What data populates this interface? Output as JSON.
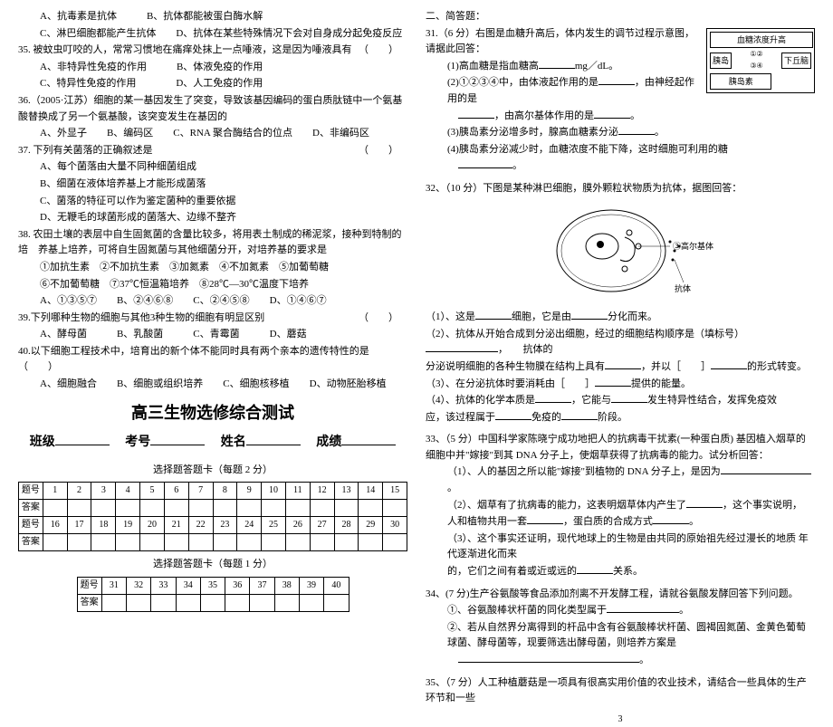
{
  "left": {
    "q34opts": {
      "a": "A、抗毒素是抗体",
      "b": "B、抗体都能被蛋白酶水解",
      "c": "C、淋巴细胞都能产生抗体",
      "d": "D、抗体在某些特殊情况下会对自身成分起免疫反应"
    },
    "q35": "35. 被蚊虫叮咬的人，常常习惯地在痛痒处抹上一点唾液，这是因为唾液具有",
    "q35opts": {
      "a": "A、非特异性免疫的作用",
      "b": "B、体液免疫的作用",
      "c": "C、特异性免疫的作用",
      "d": "D、人工免疫的作用"
    },
    "q36": "36.（2005·江苏）细胞的某一基因发生了突变，导致该基因编码的蛋白质肽链中一个氨基酸替换成了另一个氨基酸，该突变发生在基因的",
    "q36opts": {
      "a": "A、外显子",
      "b": "B、编码区",
      "c": "C、RNA 聚合酶结合的位点",
      "d": "D、非编码区"
    },
    "q37": "37. 下列有关菌落的正确叙述是",
    "q37opts": {
      "a": "A、每个菌落由大量不同种细菌组成",
      "b": "B、细菌在液体培养基上才能形成菌落",
      "c": "C、菌落的特征可以作为鉴定菌种的重要依据",
      "d": "D、无鞭毛的球菌形成的菌落大、边缘不整齐"
    },
    "q38": "38. 农田土壤的表层中自生固氮菌的含量比较多，将用表土制成的稀泥浆，接种到特制的培　养基上培养，可将自生固氮菌与其他细菌分开，对培养基的要求是",
    "q38opts1": "①加抗生素　②不加抗生素　③加氮素　④不加氮素　⑤加葡萄糖",
    "q38opts2": "⑥不加葡萄糖　⑦37℃恒温箱培养　⑧28℃—30℃温度下培养",
    "q38abcd": {
      "a": "A、①③⑤⑦",
      "b": "B、②④⑥⑧",
      "c": "C、②④⑤⑧",
      "d": "D、①④⑥⑦"
    },
    "q39": "39.下列哪种生物的细胞与其他3种生物的细胞有明显区别",
    "q39opts": {
      "a": "A、酵母菌",
      "b": "B、乳酸菌",
      "c": "C、青霉菌",
      "d": "D、蘑菇"
    },
    "q40": "40.以下细胞工程技术中，培育出的新个体不能同时具有两个亲本的遗传特性的是（",
    "q40opts": {
      "a": "A、细胞融合",
      "b": "B、细胞或组织培养",
      "c": "C、细胞核移植",
      "d": "D、动物胚胎移植"
    },
    "title": "高三生物选修综合测试",
    "form": {
      "class": "班级",
      "id": "考号",
      "name": "姓名",
      "score": "成绩"
    },
    "tbl2_title": "选择题答题卡（每题 2 分）",
    "tbl1_title": "选择题答题卡（每题 1 分）",
    "row_label_q": "题号",
    "row_label_a": "答案",
    "t2_row1": [
      "1",
      "2",
      "3",
      "4",
      "5",
      "6",
      "7",
      "8",
      "9",
      "10",
      "11",
      "12",
      "13",
      "14",
      "15"
    ],
    "t2_row2": [
      "16",
      "17",
      "18",
      "19",
      "20",
      "21",
      "22",
      "23",
      "24",
      "25",
      "26",
      "27",
      "28",
      "29",
      "30"
    ],
    "t1_row": [
      "31",
      "32",
      "33",
      "34",
      "35",
      "36",
      "37",
      "38",
      "39",
      "40"
    ]
  },
  "right": {
    "sec2": "二、简答题：",
    "q31": "31.（6 分）右图是血糖升高后，体内发生的调节过程示意图，请据此回答：",
    "q31_1": "(1)高血糖是指血糖高",
    "q31_1u": "mg／dL。",
    "q31_2": "(2)①②③④中，由体液起作用的是",
    "q31_2b": "，由神经起作用的是",
    "q31_2c": "，由高尔基体作用的是",
    "q31_3": "(3)胰岛素分泌增多时，腺高血糖素分泌",
    "q31_4": "(4)胰岛素分泌减少时，血糖浓度不能下降，这时细胞可利用的糖",
    "diag": {
      "top": "血糖浓度升高",
      "left": "胰岛",
      "right": "下丘脑",
      "bottom": "胰岛素",
      "nums": [
        "①",
        "②",
        "③",
        "④"
      ]
    },
    "q32": "32、（10 分）下图是某种淋巴细胞，膜外颗粒状物质为抗体，据图回答：",
    "cell_labels": {
      "gb": "③高尔基体",
      "ab": "抗体"
    },
    "q32_1": "（1）、这是",
    "q32_1b": "细胞，它是由",
    "q32_1c": "分化而来。",
    "q32_2": "（2）、抗体从开始合成到分泌出细胞，经过的细胞结构顺序是（填标号）",
    "q32_2b": "，　　抗体的",
    "q32_2c": "分泌说明细胞的各种生物膜在结构上具有",
    "q32_2d": "，并以［　　］",
    "q32_2e": "的形式转变。",
    "q32_3": "（3）、在分泌抗体时要消耗由［　　］",
    "q32_3b": "提供的能量。",
    "q32_4": "（4）、抗体的化学本质是",
    "q32_4b": "，它能与",
    "q32_4c": "发生特异性结合，发挥免疫效",
    "q32_4d": "应，该过程属于",
    "q32_4e": "免疫的",
    "q32_4f": "阶段。",
    "q33": "33、（5 分）中国科学家陈晓宁成功地把人的抗病毒干扰素(一种蛋白质) 基因植入烟草的细胞中并\"嫁接\"到其 DNA 分子上，使烟草获得了抗病毒的能力。试分析回答：",
    "q33_1": "（1）、人的基因之所以能\"嫁接\"到植物的 DNA 分子上，是因为",
    "q33_2": "（2）、烟草有了抗病毒的能力，这表明烟草体内产生了",
    "q33_2b": "，这个事实说明，",
    "q33_2c": "人和植物共用一套",
    "q33_2d": "，蛋白质的合成方式",
    "q33_3": "（3）、这个事实还证明，现代地球上的生物是由共同的原始祖先经过漫长的地质 年代逐渐进化而来",
    "q33_3b": "的，它们之间有着或近或远的",
    "q33_3c": "关系。",
    "q34": "34、(7 分)生产谷氨酸等食品添加剂离不开发酵工程，请就谷氨酸发酵回答下列问题。",
    "q34_1": "①、谷氨酸棒状杆菌的同化类型属于",
    "q34_2": "②、若从自然界分离得到的杆品中含有谷氨酸棒状杆菌、圆褐固氮菌、金黄色葡萄球菌、酵母菌等，现要筛选出酵母菌，则培养方案是",
    "q35r": "35、（7 分）人工种植蘑菇是一项具有很高实用价值的农业技术，请结合一些具体的生产环节和一些"
  },
  "page_num": "3"
}
